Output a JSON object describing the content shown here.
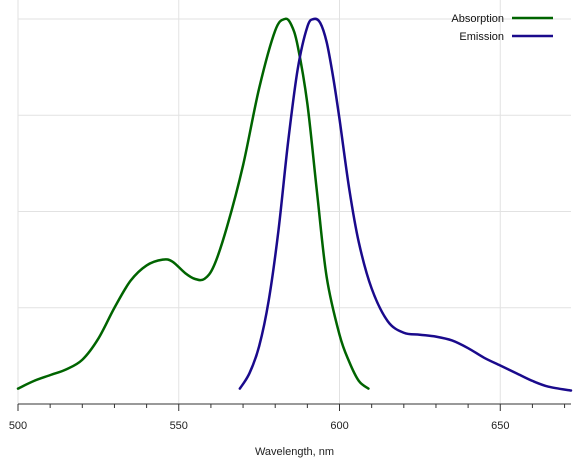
{
  "chart_data": {
    "type": "line",
    "title": "",
    "xlabel": "Wavelength, nm",
    "ylabel": "",
    "xlim": [
      500,
      672
    ],
    "ylim": [
      0,
      1
    ],
    "x_ticks": [
      500,
      550,
      600,
      650
    ],
    "x_tick_labels": [
      "500",
      "550",
      "600",
      "650"
    ],
    "y_gridlines": [
      0.25,
      0.5,
      0.75,
      1.0
    ],
    "grid": true,
    "legend_position": "top-right",
    "series": [
      {
        "name": "Absorption",
        "color": "#006400",
        "x": [
          500,
          505,
          510,
          515,
          520,
          525,
          530,
          535,
          540,
          545,
          548,
          552,
          555,
          558,
          561,
          565,
          570,
          575,
          580,
          583,
          585,
          587,
          590,
          593,
          596,
          600,
          603,
          606,
          609
        ],
        "y": [
          0.04,
          0.06,
          0.075,
          0.09,
          0.115,
          0.17,
          0.25,
          0.32,
          0.36,
          0.375,
          0.37,
          0.34,
          0.325,
          0.325,
          0.36,
          0.46,
          0.62,
          0.82,
          0.97,
          1.0,
          0.985,
          0.93,
          0.78,
          0.55,
          0.33,
          0.18,
          0.11,
          0.06,
          0.04
        ]
      },
      {
        "name": "Emission",
        "color": "#1a0a8c",
        "x": [
          569,
          572,
          575,
          578,
          581,
          584,
          587,
          590,
          592,
          594,
          596,
          598,
          600,
          603,
          606,
          610,
          615,
          620,
          625,
          630,
          635,
          640,
          645,
          650,
          655,
          660,
          665,
          672
        ],
        "y": [
          0.04,
          0.08,
          0.15,
          0.27,
          0.45,
          0.68,
          0.87,
          0.98,
          1.0,
          0.99,
          0.94,
          0.85,
          0.74,
          0.56,
          0.42,
          0.3,
          0.215,
          0.185,
          0.18,
          0.175,
          0.165,
          0.145,
          0.12,
          0.1,
          0.08,
          0.06,
          0.045,
          0.035
        ]
      }
    ]
  }
}
